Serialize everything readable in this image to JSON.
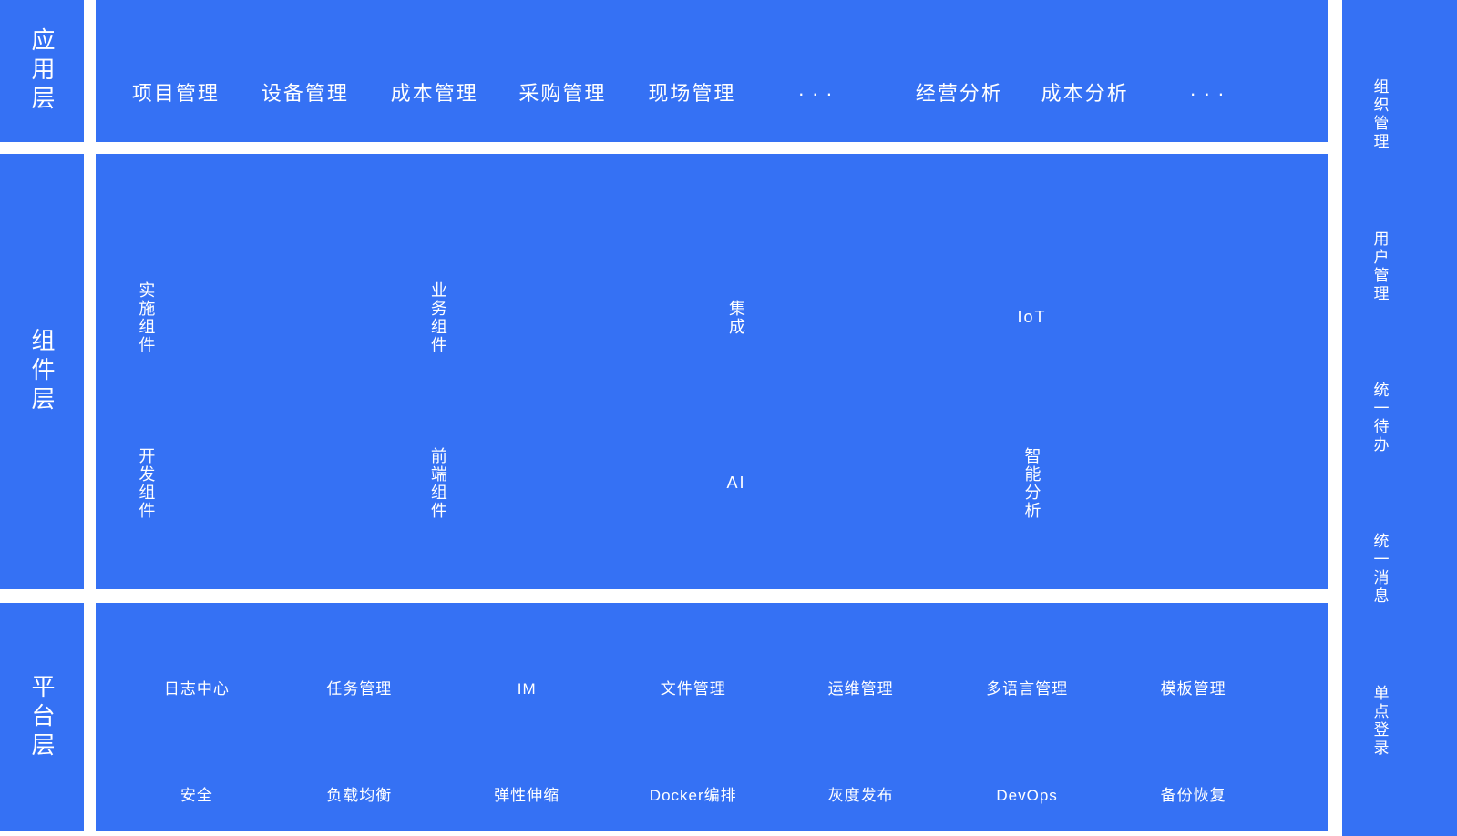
{
  "colors": {
    "panel_blue": "#3571F4",
    "text_white": "#FFFFFF",
    "background": "#FFFFFF"
  },
  "left_rail": {
    "layers": [
      "应用层",
      "组件层",
      "平台层"
    ]
  },
  "app_layer": {
    "items": [
      "项目管理",
      "设备管理",
      "成本管理",
      "采购管理",
      "现场管理",
      "···",
      "经营分析",
      "成本分析",
      "···"
    ]
  },
  "component_layer": {
    "row1": [
      {
        "label": "实施组件",
        "vertical": true
      },
      {
        "label": "业务组件",
        "vertical": true
      },
      {
        "label": "集成",
        "vertical": true
      },
      {
        "label": "IoT",
        "vertical": false
      }
    ],
    "row2": [
      {
        "label": "开发组件",
        "vertical": true
      },
      {
        "label": "前端组件",
        "vertical": true
      },
      {
        "label": "AI",
        "vertical": false
      },
      {
        "label": "智能分析",
        "vertical": true
      }
    ]
  },
  "platform_layer": {
    "row1": [
      "日志中心",
      "任务管理",
      "IM",
      "文件管理",
      "运维管理",
      "多语言管理",
      "模板管理"
    ],
    "row2": [
      "安全",
      "负载均衡",
      "弹性伸缩",
      "Docker编排",
      "灰度发布",
      "DevOps",
      "备份恢复"
    ]
  },
  "right_rail": {
    "items": [
      "组织管理",
      "用户管理",
      "统一待办",
      "统一消息",
      "单点登录"
    ]
  }
}
